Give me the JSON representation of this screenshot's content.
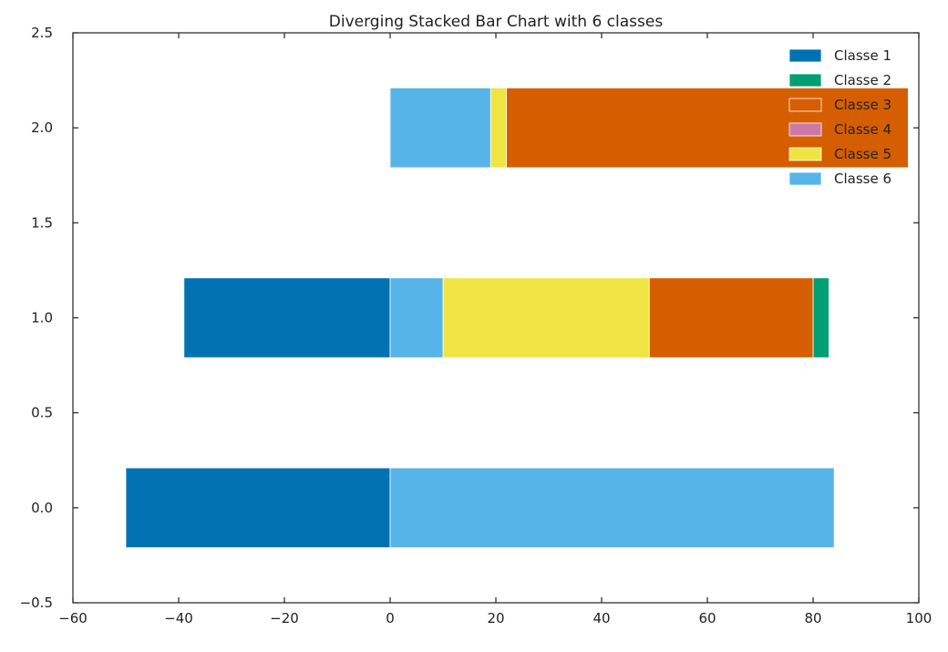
{
  "chart_data": {
    "type": "bar",
    "orientation": "horizontal",
    "stacked": true,
    "title": "Diverging Stacked Bar Chart with 6 classes",
    "xlabel": "",
    "ylabel": "",
    "xlim": [
      -60,
      100
    ],
    "ylim": [
      -0.5,
      2.5
    ],
    "xticks": [
      -60,
      -40,
      -20,
      0,
      20,
      40,
      60,
      80,
      100
    ],
    "xtick_labels": [
      "−60",
      "−40",
      "−20",
      "0",
      "20",
      "40",
      "60",
      "80",
      "100"
    ],
    "yticks": [
      -0.5,
      0.0,
      0.5,
      1.0,
      1.5,
      2.0,
      2.5
    ],
    "ytick_labels": [
      "−0.5",
      "0.0",
      "0.5",
      "1.0",
      "1.5",
      "2.0",
      "2.5"
    ],
    "grid": false,
    "legend_position": "top-right",
    "categories": [
      0,
      1,
      2
    ],
    "series": [
      {
        "name": "Classe 1",
        "color": "#0072b2",
        "segments": [
          [
            -50,
            0
          ],
          [
            -39,
            0
          ],
          null
        ]
      },
      {
        "name": "Classe 2",
        "color": "#009e73",
        "segments": [
          null,
          [
            80,
            83
          ],
          null
        ]
      },
      {
        "name": "Classe 3",
        "color": "#d55e00",
        "segments": [
          null,
          [
            49,
            80
          ],
          [
            22,
            98
          ]
        ]
      },
      {
        "name": "Classe 4",
        "color": "#cc79a7",
        "segments": [
          null,
          null,
          null
        ]
      },
      {
        "name": "Classe 5",
        "color": "#f0e442",
        "segments": [
          null,
          [
            10,
            49
          ],
          [
            19,
            22
          ]
        ]
      },
      {
        "name": "Classe 6",
        "color": "#56b4e9",
        "segments": [
          [
            0,
            84
          ],
          [
            0,
            10
          ],
          [
            0,
            19
          ]
        ]
      }
    ]
  }
}
